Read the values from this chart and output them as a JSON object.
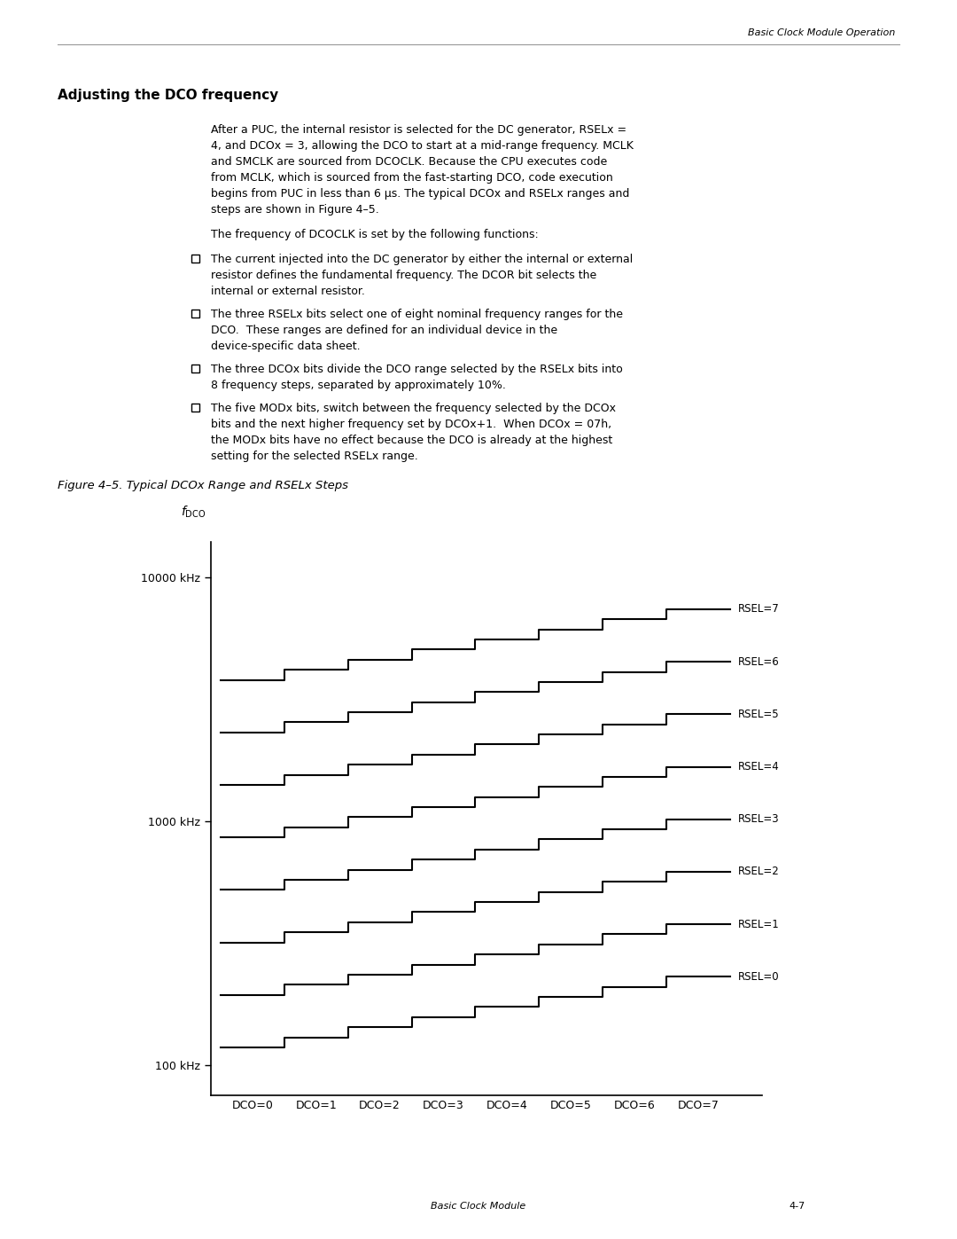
{
  "title": "Figure 4–5. Typical DCOx Range and RSELx Steps",
  "header_right": "Basic Clock Module Operation",
  "footer_left": "Basic Clock Module",
  "footer_right": "4-7",
  "section_title": "Adjusting the DCO frequency",
  "x_ticks": [
    "DCO=0",
    "DCO=1",
    "DCO=2",
    "DCO=3",
    "DCO=4",
    "DCO=5",
    "DCO=6",
    "DCO=7"
  ],
  "rsel_labels": [
    "RSEL=0",
    "RSEL=1",
    "RSEL=2",
    "RSEL=3",
    "RSEL=4",
    "RSEL=5",
    "RSEL=6",
    "RSEL=7"
  ],
  "num_dco": 8,
  "num_rsel": 8,
  "dco_step_factor": 1.1,
  "background_color": "#ffffff",
  "line_color": "#000000",
  "text_color": "#000000",
  "para1_lines": [
    "After a PUC, the internal resistor is selected for the DC generator, RSELx =",
    "4, and DCOx = 3, allowing the DCO to start at a mid-range frequency. MCLK",
    "and SMCLK are sourced from DCOCLK. Because the CPU executes code",
    "from MCLK, which is sourced from the fast-starting DCO, code execution",
    "begins from PUC in less than 6 μs. The typical DCOx and RSELx ranges and",
    "steps are shown in Figure 4–5."
  ],
  "para2": "The frequency of DCOCLK is set by the following functions:",
  "bullet1_lines": [
    "The current injected into the DC generator by either the internal or external",
    "resistor defines the fundamental frequency. The DCOR bit selects the",
    "internal or external resistor."
  ],
  "bullet2_lines": [
    "The three RSELx bits select one of eight nominal frequency ranges for the",
    "DCO.  These ranges are defined for an individual device in the",
    "device-specific data sheet."
  ],
  "bullet3_lines": [
    "The three DCOx bits divide the DCO range selected by the RSELx bits into",
    "8 frequency steps, separated by approximately 10%."
  ],
  "bullet4_lines": [
    "The five MODx bits, switch between the frequency selected by the DCOx",
    "bits and the next higher frequency set by DCOx+1.  When DCOx = 07h,",
    "the MODx bits have no effect because the DCO is already at the highest",
    "setting for the selected RSELx range."
  ]
}
